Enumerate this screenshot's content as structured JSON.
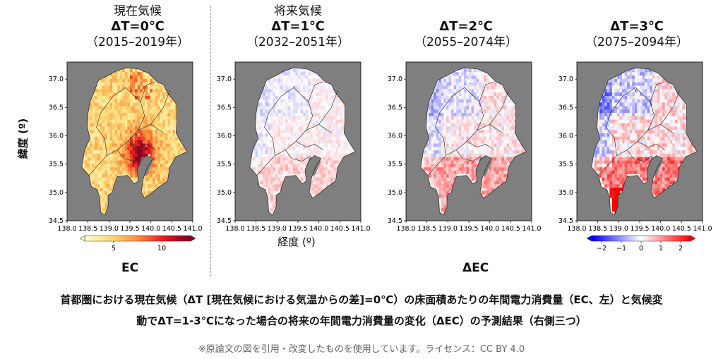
{
  "chart_data": [
    {
      "type": "heatmap",
      "panel_label": "現在気候",
      "title": "ΔT=0℃",
      "period": "（2015–2019年）",
      "xlim": [
        138.0,
        141.0
      ],
      "ylim": [
        34.5,
        37.3
      ],
      "xticks": [
        "138.0",
        "138.5",
        "139.0",
        "139.5",
        "140.0",
        "140.5",
        "141.0"
      ],
      "yticks": [
        "34.5",
        "35.0",
        "35.5",
        "36.0",
        "36.5",
        "37.0"
      ],
      "ylabel": "緯度 (º)",
      "colormap": "YlOrRd",
      "colorbar_ticks": [
        "5",
        "10"
      ],
      "colorbar_range": [
        2,
        13
      ],
      "colorbar_colors": [
        "#ffffcc",
        "#fed976",
        "#fd8d3c",
        "#e31a1c",
        "#800026"
      ]
    },
    {
      "type": "heatmap",
      "panel_label": "将来気候",
      "title": "ΔT=1℃",
      "period": "（2032–2051年）",
      "xlim": [
        138.0,
        141.0
      ],
      "ylim": [
        34.5,
        37.3
      ],
      "xticks": [
        "138.0",
        "138.5",
        "139.0",
        "139.5",
        "140.0",
        "140.5",
        "141.0"
      ],
      "yticks": [
        "34.5",
        "35.0",
        "35.5",
        "36.0",
        "36.5",
        "37.0"
      ],
      "xlabel": "経度 (º)",
      "colormap": "bwr"
    },
    {
      "type": "heatmap",
      "title": "ΔT=2℃",
      "period": "（2055–2074年）",
      "xlim": [
        138.0,
        141.0
      ],
      "ylim": [
        34.5,
        37.3
      ],
      "xticks": [
        "138.0",
        "138.5",
        "139.0",
        "139.5",
        "140.0",
        "140.5",
        "141.0"
      ],
      "yticks": [
        "34.5",
        "35.0",
        "35.5",
        "36.0",
        "36.5",
        "37.0"
      ],
      "colormap": "bwr"
    },
    {
      "type": "heatmap",
      "title": "ΔT=3℃",
      "period": "（2075–2094年）",
      "xlim": [
        138.0,
        141.0
      ],
      "ylim": [
        34.5,
        37.3
      ],
      "xticks": [
        "138.0",
        "138.5",
        "139.0",
        "139.5",
        "140.0",
        "140.5",
        "141.0"
      ],
      "yticks": [
        "34.5",
        "35.0",
        "35.5",
        "36.0",
        "36.5",
        "37.0"
      ],
      "colormap": "bwr",
      "colorbar_ticks": [
        "−2",
        "−1",
        "0",
        "1",
        "2"
      ],
      "colorbar_range": [
        -2.5,
        2.5
      ],
      "colorbar_colors": [
        "#0000ff",
        "#8080ff",
        "#ffffff",
        "#ff8080",
        "#ff0000"
      ]
    }
  ],
  "labels": {
    "ec": "EC",
    "delta_ec": "ΔEC"
  },
  "caption": {
    "line1": "首都圏における現在気候（ΔT [現在気候における気温からの差]=0℃）の床面積あたりの年間電力消費量（EC、左）と気候変",
    "line2": "動でΔT=1-3℃になった場合の将来の年間電力消費量の変化（ΔEC）の予測結果（右側三つ）"
  },
  "credit": "※原論文の図を引用・改変したものを使用しています。ライセンス：CC BY 4.0",
  "colors": {
    "sea": "#7f7f7f",
    "land_base": "#f4f4f4",
    "border": "#222222"
  }
}
